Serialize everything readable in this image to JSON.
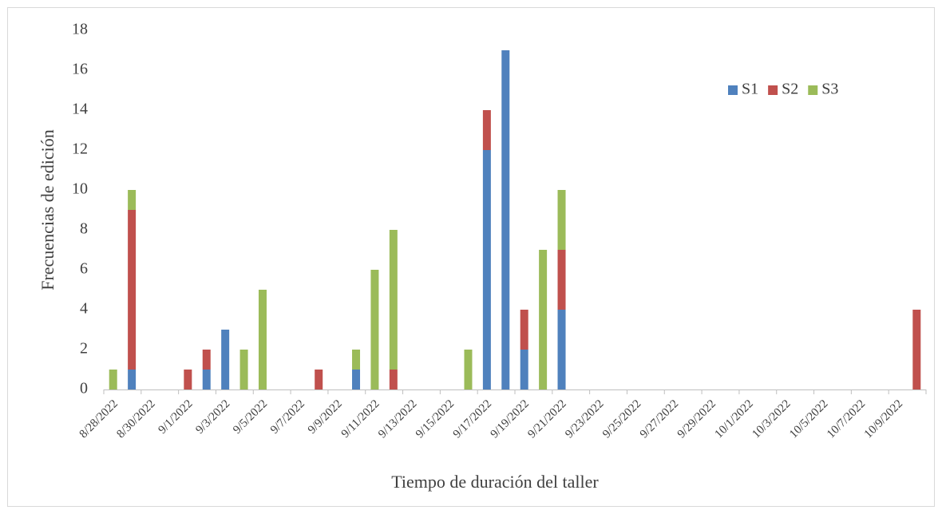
{
  "chart_data": {
    "type": "stacked_bar",
    "y_label": "Frecuencias de edición",
    "x_label": "Tiempo de duración del taller",
    "categories": [
      "8/28/2022",
      null,
      "8/30/2022",
      null,
      "9/1/2022",
      null,
      "9/3/2022",
      null,
      "9/5/2022",
      null,
      "9/7/2022",
      null,
      "9/9/2022",
      null,
      "9/11/2022",
      null,
      "9/13/2022",
      null,
      "9/15/2022",
      null,
      "9/17/2022",
      null,
      "9/19/2022",
      null,
      "9/21/2022",
      null,
      "9/23/2022",
      null,
      "9/25/2022",
      null,
      "9/27/2022",
      null,
      "9/29/2022",
      null,
      "10/1/2022",
      null,
      "10/3/2022",
      null,
      "10/5/2022",
      null,
      "10/7/2022",
      null,
      "10/9/2022",
      null
    ],
    "series": [
      {
        "name": "S1",
        "color": "#4f81bd",
        "values": [
          null,
          1,
          null,
          null,
          null,
          1,
          3,
          null,
          null,
          null,
          null,
          null,
          null,
          1,
          null,
          null,
          null,
          null,
          null,
          null,
          12,
          17,
          2,
          null,
          4,
          null,
          null,
          null,
          null,
          null,
          null,
          null,
          null,
          null,
          null,
          null,
          null,
          null,
          null,
          null,
          null,
          null,
          null,
          null
        ]
      },
      {
        "name": "S2",
        "color": "#c0504d",
        "values": [
          null,
          8,
          null,
          null,
          1,
          1,
          null,
          null,
          null,
          null,
          null,
          1,
          null,
          null,
          null,
          1,
          null,
          null,
          null,
          null,
          2,
          null,
          2,
          null,
          3,
          null,
          null,
          null,
          null,
          null,
          null,
          null,
          null,
          null,
          null,
          null,
          null,
          null,
          null,
          null,
          null,
          null,
          null,
          4
        ]
      },
      {
        "name": "S3",
        "color": "#9bbb59",
        "values": [
          1,
          1,
          null,
          null,
          null,
          null,
          null,
          2,
          5,
          null,
          null,
          null,
          null,
          1,
          6,
          7,
          null,
          null,
          null,
          2,
          null,
          null,
          null,
          7,
          3,
          null,
          null,
          null,
          null,
          null,
          null,
          null,
          null,
          null,
          null,
          null,
          null,
          null,
          null,
          null,
          null,
          null,
          null,
          null
        ]
      }
    ],
    "ylim": [
      0,
      18
    ],
    "yticks": [
      0,
      2,
      4,
      6,
      8,
      10,
      12,
      14,
      16,
      18
    ],
    "grid": false,
    "legend": "top-right"
  }
}
